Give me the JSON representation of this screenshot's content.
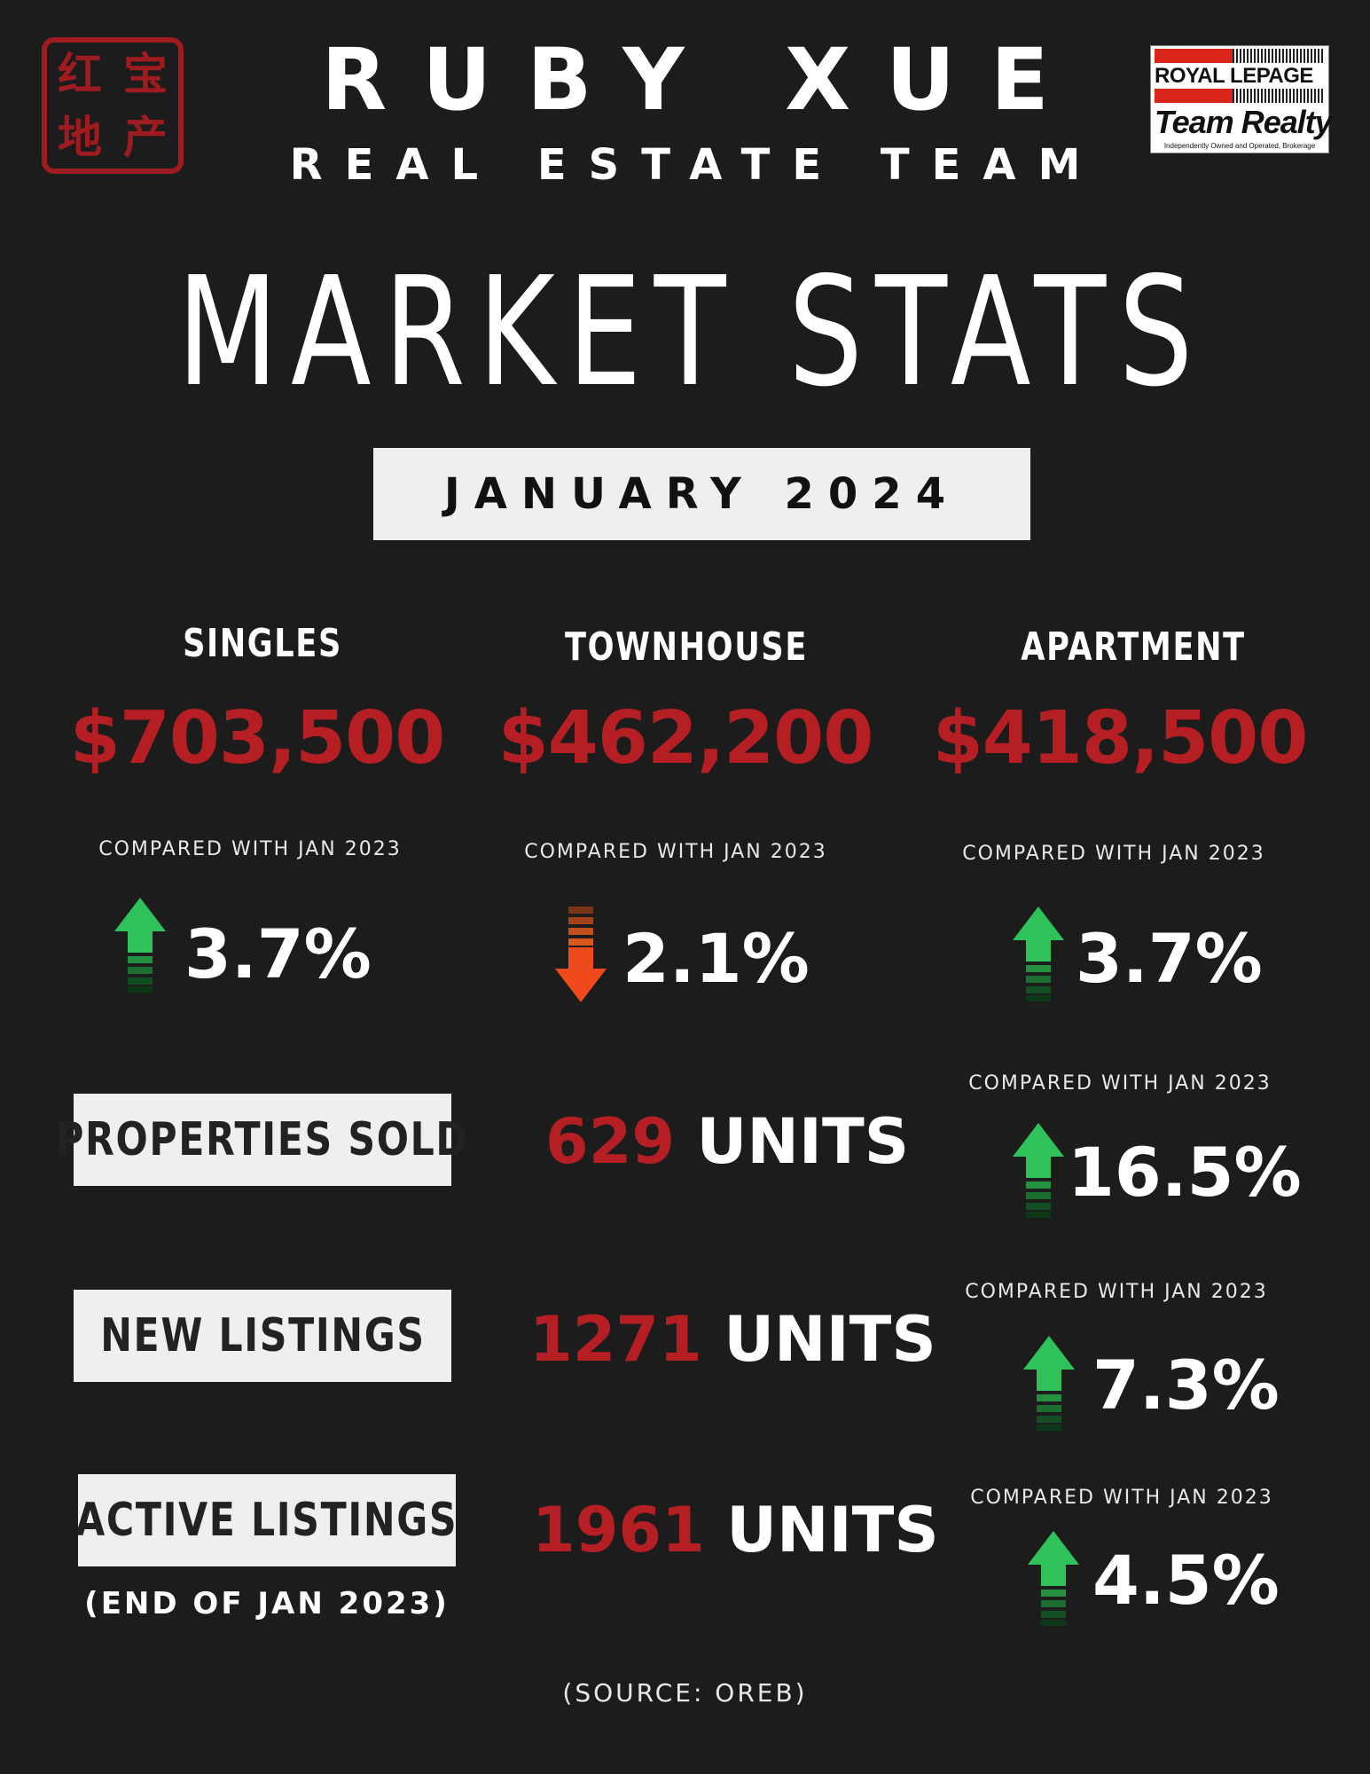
{
  "header": {
    "seal_chars": [
      "红",
      "宝",
      "地",
      "产"
    ],
    "name": "RUBY XUE",
    "team": "REAL ESTATE TEAM",
    "brand": {
      "line1": "ROYAL LEPAGE",
      "line2": "Team Realty",
      "line3": "Independently Owned and Operated, Brokerage"
    }
  },
  "title": "MARKET STATS",
  "period": "JANUARY 2024",
  "categories": [
    {
      "label": "SINGLES",
      "price": "$703,500",
      "compare": "COMPARED WITH JAN 2023",
      "change": "3.7%",
      "direction": "up"
    },
    {
      "label": "TOWNHOUSE",
      "price": "$462,200",
      "compare": "COMPARED WITH JAN 2023",
      "change": "2.1%",
      "direction": "down"
    },
    {
      "label": "APARTMENT",
      "price": "$418,500",
      "compare": "COMPARED WITH JAN 2023",
      "change": "3.7%",
      "direction": "up"
    }
  ],
  "metrics": [
    {
      "label": "PROPERTIES SOLD",
      "value": "629",
      "unit": "UNITS",
      "compare": "COMPARED WITH JAN 2023",
      "change": "16.5%",
      "direction": "up"
    },
    {
      "label": "NEW LISTINGS",
      "value": "1271",
      "unit": "UNITS",
      "compare": "COMPARED WITH JAN 2023",
      "change": "7.3%",
      "direction": "up"
    },
    {
      "label": "ACTIVE LISTINGS",
      "note": "(END OF JAN 2023)",
      "value": "1961",
      "unit": "UNITS",
      "compare": "COMPARED WITH JAN 2023",
      "change": "4.5%",
      "direction": "up"
    }
  ],
  "source": "(SOURCE: OREB)",
  "colors": {
    "background": "#1c1c1d",
    "accent_red": "#b51f24",
    "up_green": "#2fc25b",
    "down_orange": "#f04a1c",
    "box_bg": "#efeef0"
  }
}
